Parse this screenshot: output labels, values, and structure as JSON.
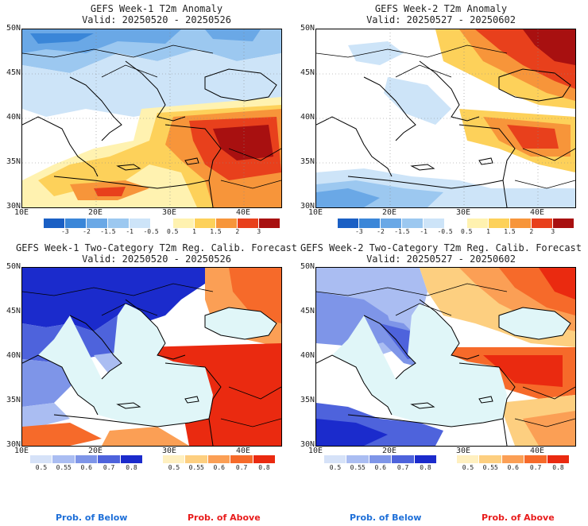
{
  "panels": [
    {
      "title": "GEFS Week-1 T2m Anomaly",
      "valid": "Valid: 20250520 - 20250526"
    },
    {
      "title": "GEFS Week-2 T2m Anomaly",
      "valid": "Valid: 20250527 - 20250602"
    },
    {
      "title": "GEFS Week-1 Two-Category T2m Reg. Calib. Forecast",
      "valid": "Valid: 20250520 - 20250526"
    },
    {
      "title": "GEFS Week-2 Two-Category T2m Reg. Calib. Forecast",
      "valid": "Valid: 20250527 - 20250602"
    }
  ],
  "axes": {
    "lat_labels": [
      "50N",
      "45N",
      "40N",
      "35N",
      "30N"
    ],
    "lon_labels": [
      "10E",
      "20E",
      "30E",
      "40E"
    ]
  },
  "anomaly_colorbar": {
    "labels": [
      "-3",
      "-2",
      "-1.5",
      "-1",
      "-0.5",
      "0.5",
      "1",
      "1.5",
      "2",
      "3"
    ],
    "colors": [
      "#1a5fc4",
      "#3a86d8",
      "#6aa8e6",
      "#9cc8f0",
      "#cde4f8",
      "#ffffff",
      "#fff2b0",
      "#fdd15a",
      "#f7953a",
      "#e8401c",
      "#a81010"
    ]
  },
  "prob_below_colorbar": {
    "labels": [
      "0.5",
      "0.55",
      "0.6",
      "0.7",
      "0.8"
    ],
    "colors": [
      "#d6e2f8",
      "#aabdf2",
      "#7e95e8",
      "#4e63dc",
      "#1b2bcc"
    ]
  },
  "prob_above_colorbar": {
    "labels": [
      "0.5",
      "0.55",
      "0.6",
      "0.7",
      "0.8"
    ],
    "colors": [
      "#fff0c0",
      "#fdcf80",
      "#fb9f55",
      "#f66a2a",
      "#ea2a10"
    ]
  },
  "legend": {
    "below": "Prob. of Below",
    "above": "Prob. of Above",
    "below_color": "#1e6fd8",
    "above_color": "#e81c1c"
  }
}
